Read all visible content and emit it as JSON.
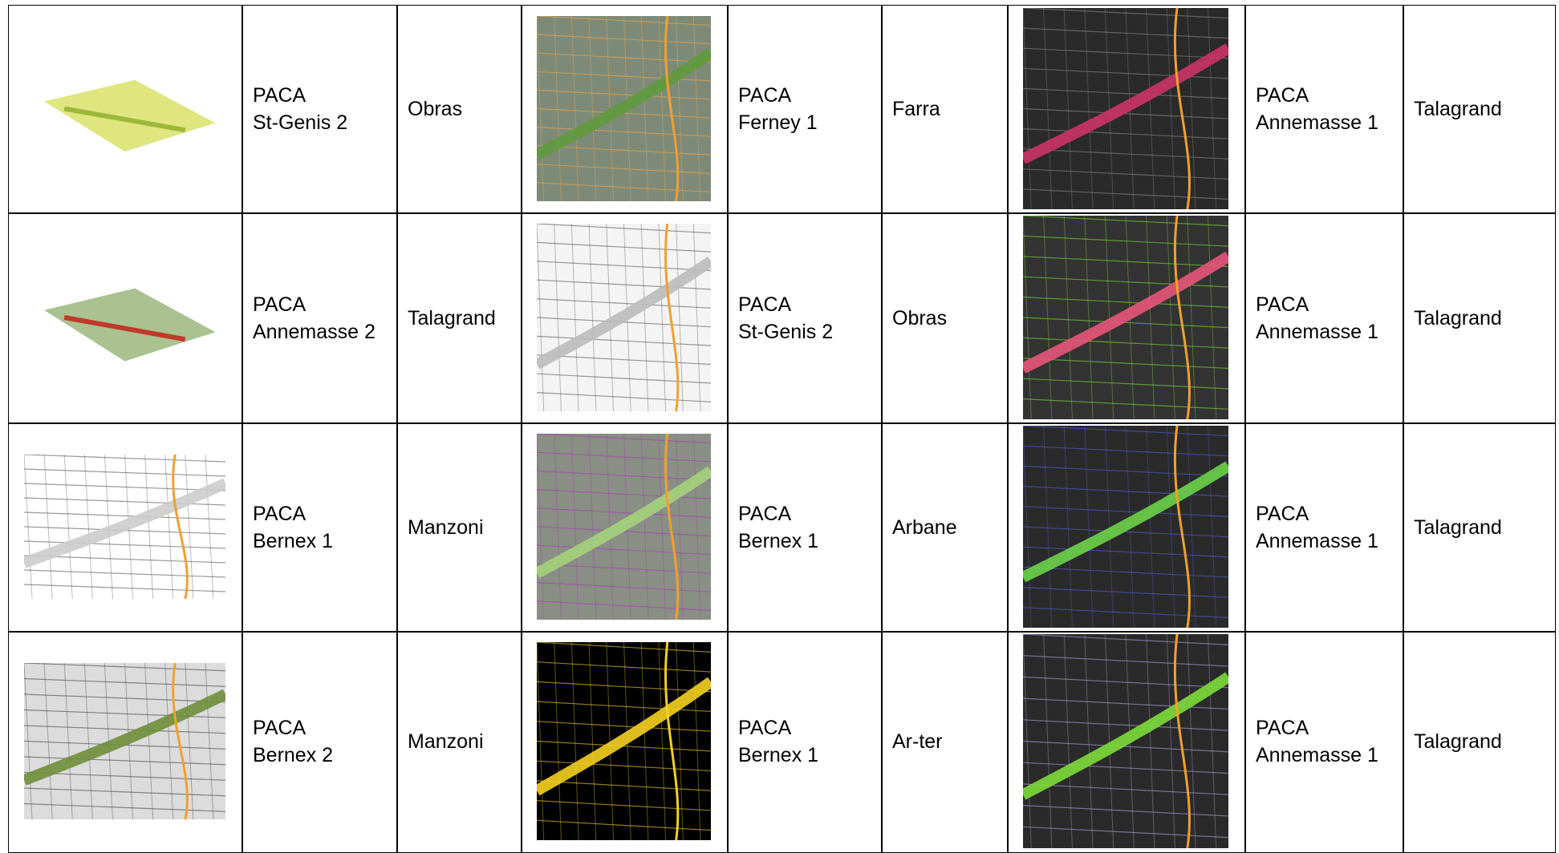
{
  "rows": [
    {
      "cells": [
        {
          "project": [
            "PACA",
            "St-Genis 2"
          ],
          "author": "Obras"
        },
        {
          "project": [
            "PACA",
            "Ferney 1"
          ],
          "author": "Farra"
        },
        {
          "project": [
            "PACA",
            "Annemasse 1"
          ],
          "author": "Talagrand"
        }
      ]
    },
    {
      "cells": [
        {
          "project": [
            "PACA",
            "Annemasse 2"
          ],
          "author": "Talagrand"
        },
        {
          "project": [
            "PACA",
            "St-Genis 2"
          ],
          "author": "Obras"
        },
        {
          "project": [
            "PACA",
            "Annemasse 1"
          ],
          "author": "Talagrand"
        }
      ]
    },
    {
      "cells": [
        {
          "project": [
            "PACA",
            "Bernex 1"
          ],
          "author": "Manzoni"
        },
        {
          "project": [
            "PACA",
            "Bernex 1"
          ],
          "author": "Arbane"
        },
        {
          "project": [
            "PACA",
            "Annemasse 1"
          ],
          "author": "Talagrand"
        }
      ]
    },
    {
      "cells": [
        {
          "project": [
            "PACA",
            "Bernex 2"
          ],
          "author": "Manzoni"
        },
        {
          "project": [
            "PACA",
            "Bernex 1"
          ],
          "author": "Ar-ter"
        },
        {
          "project": [
            "PACA",
            "Annemasse 1"
          ],
          "author": "Talagrand"
        }
      ]
    }
  ]
}
